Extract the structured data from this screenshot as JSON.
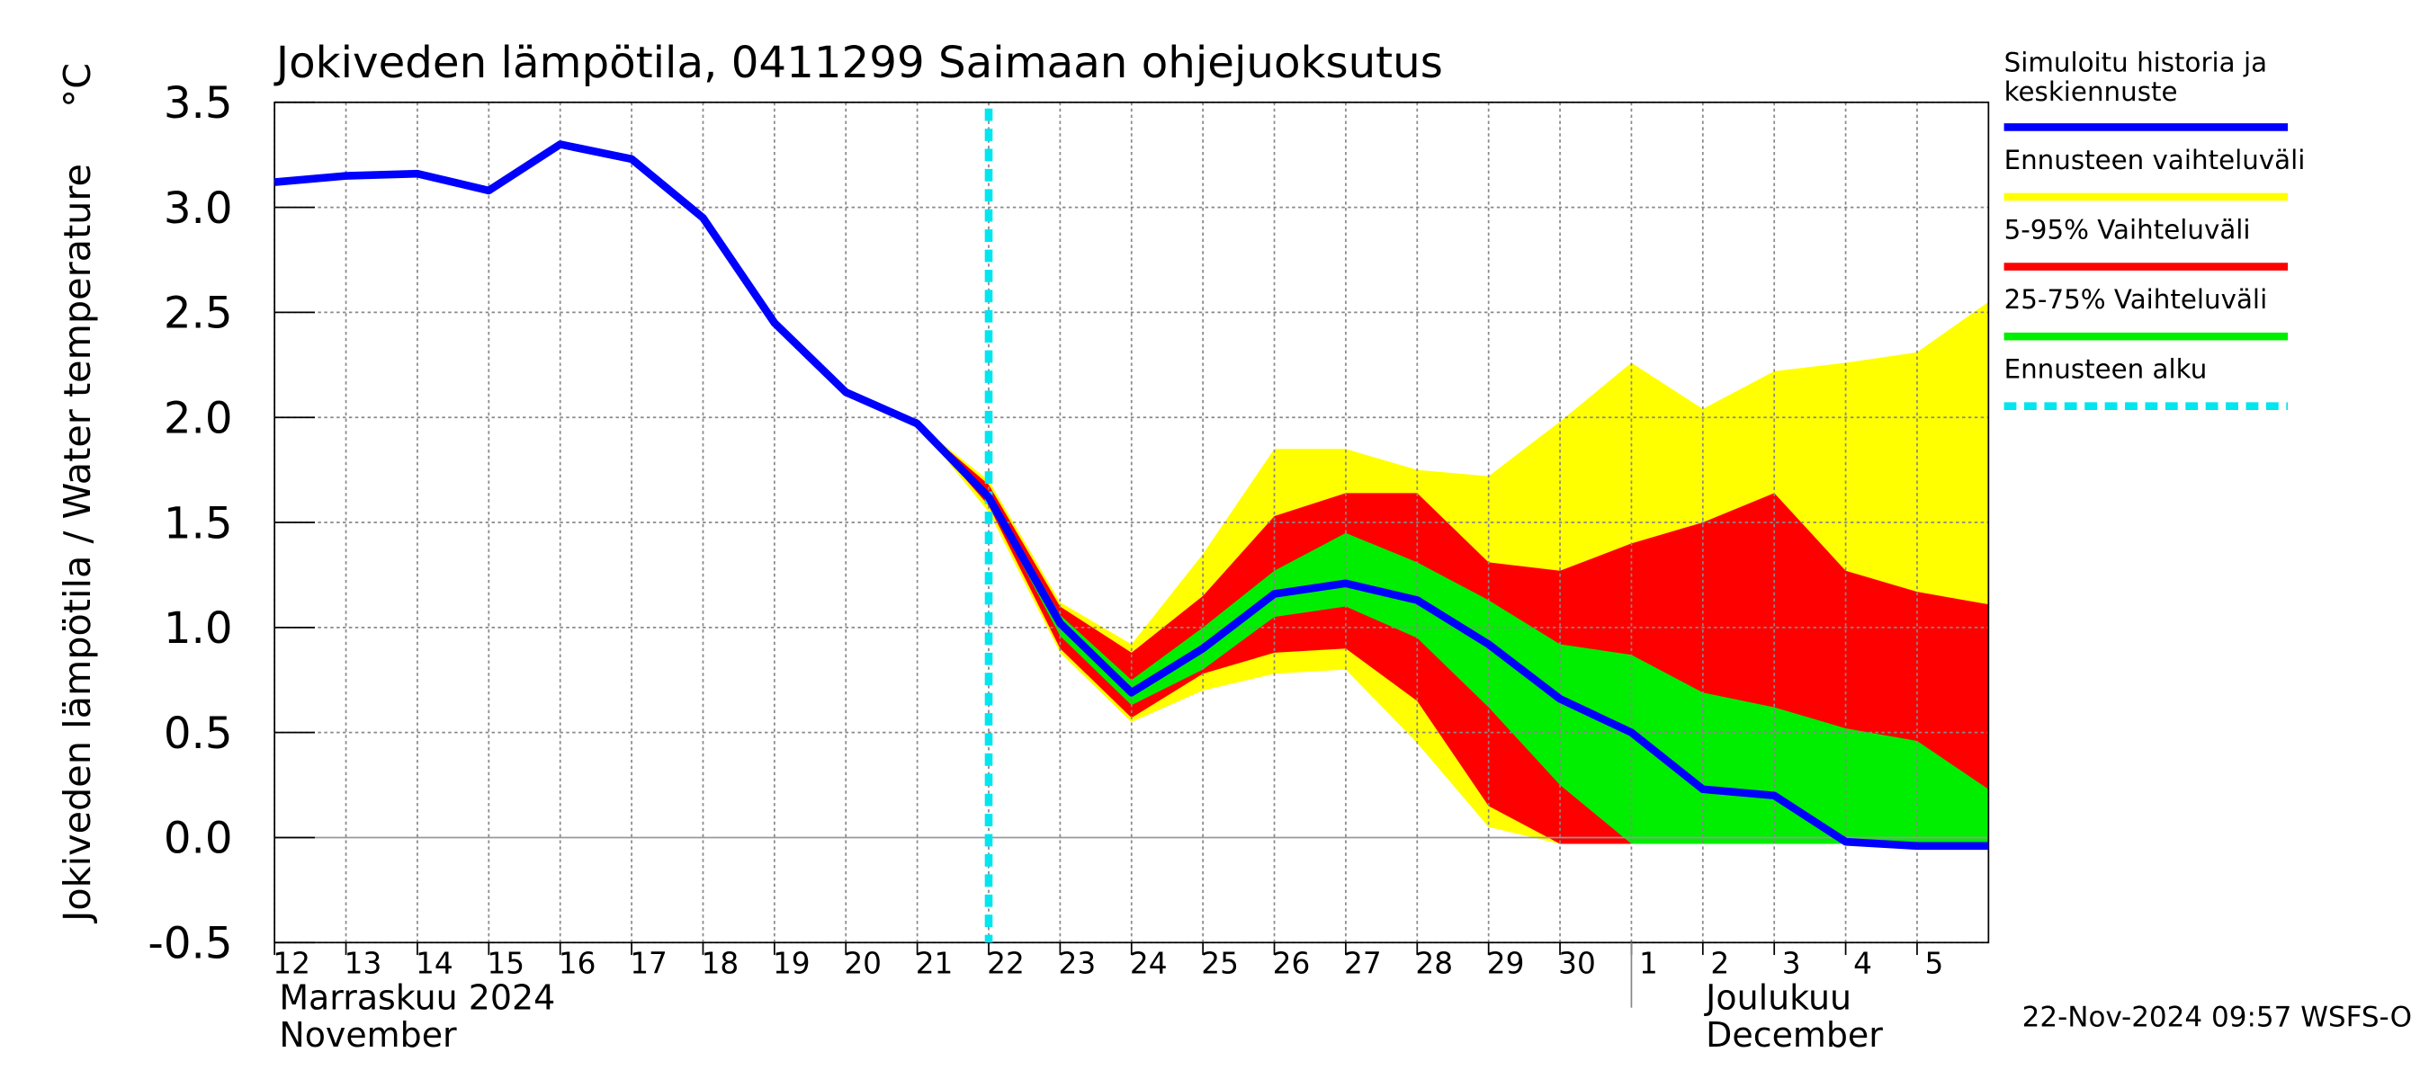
{
  "chart_data": {
    "type": "line",
    "title": "Jokiveden lämpötila, 0411299 Saimaan ohjejuoksutus",
    "y_label": "Jokiveden lämpötila / Water temperature",
    "y_unit": "°C",
    "timestamp": "22-Nov-2024 09:57 WSFS-O",
    "month_labels": [
      {
        "x": "2024-11-12",
        "lines": [
          "Marraskuu 2024",
          "November"
        ]
      },
      {
        "x": "2024-12-01",
        "lines": [
          "Joulukuu",
          "December"
        ]
      }
    ],
    "x": [
      "2024-11-12",
      "2024-11-13",
      "2024-11-14",
      "2024-11-15",
      "2024-11-16",
      "2024-11-17",
      "2024-11-18",
      "2024-11-19",
      "2024-11-20",
      "2024-11-21",
      "2024-11-22",
      "2024-11-23",
      "2024-11-24",
      "2024-11-25",
      "2024-11-26",
      "2024-11-27",
      "2024-11-28",
      "2024-11-29",
      "2024-11-30",
      "2024-12-01",
      "2024-12-02",
      "2024-12-03",
      "2024-12-04",
      "2024-12-05",
      "2024-12-06"
    ],
    "xlim": [
      "2024-11-12",
      "2024-12-06"
    ],
    "xticks": [
      {
        "value": "2024-11-12",
        "label": "12"
      },
      {
        "value": "2024-11-13",
        "label": "13"
      },
      {
        "value": "2024-11-14",
        "label": "14"
      },
      {
        "value": "2024-11-15",
        "label": "15"
      },
      {
        "value": "2024-11-16",
        "label": "16"
      },
      {
        "value": "2024-11-17",
        "label": "17"
      },
      {
        "value": "2024-11-18",
        "label": "18"
      },
      {
        "value": "2024-11-19",
        "label": "19"
      },
      {
        "value": "2024-11-20",
        "label": "20"
      },
      {
        "value": "2024-11-21",
        "label": "21"
      },
      {
        "value": "2024-11-22",
        "label": "22"
      },
      {
        "value": "2024-11-23",
        "label": "23"
      },
      {
        "value": "2024-11-24",
        "label": "24"
      },
      {
        "value": "2024-11-25",
        "label": "25"
      },
      {
        "value": "2024-11-26",
        "label": "26"
      },
      {
        "value": "2024-11-27",
        "label": "27"
      },
      {
        "value": "2024-11-28",
        "label": "28"
      },
      {
        "value": "2024-11-29",
        "label": "29"
      },
      {
        "value": "2024-11-30",
        "label": "30"
      },
      {
        "value": "2024-12-01",
        "label": "1"
      },
      {
        "value": "2024-12-02",
        "label": "2"
      },
      {
        "value": "2024-12-03",
        "label": "3"
      },
      {
        "value": "2024-12-04",
        "label": "4"
      },
      {
        "value": "2024-12-05",
        "label": "5"
      }
    ],
    "ylim": [
      -0.5,
      3.5
    ],
    "yticks": [
      -0.5,
      {
        "value": 0,
        "label": "0.0"
      },
      0.5,
      {
        "value": 1,
        "label": "1.0"
      },
      1.5,
      {
        "value": 2,
        "label": "2.0"
      },
      2.5,
      {
        "value": 3,
        "label": "3.0"
      },
      3.5
    ],
    "grid": true,
    "bands": [
      {
        "name": "Ennusteen vaihteluväli",
        "color": "#ffff00",
        "upper": [
          null,
          null,
          null,
          null,
          null,
          null,
          null,
          null,
          null,
          1.97,
          1.7,
          1.12,
          0.92,
          1.35,
          1.85,
          1.85,
          1.75,
          1.72,
          1.98,
          2.26,
          2.04,
          2.22,
          2.26,
          2.31,
          2.55
        ],
        "lower": [
          null,
          null,
          null,
          null,
          null,
          null,
          null,
          null,
          null,
          1.97,
          1.55,
          0.88,
          0.55,
          0.7,
          0.78,
          0.8,
          0.45,
          0.05,
          -0.03,
          -0.03,
          -0.03,
          -0.03,
          -0.03,
          -0.03,
          -0.03
        ]
      },
      {
        "name": "5-95% Vaihteluväli",
        "color": "#ff0000",
        "upper": [
          null,
          null,
          null,
          null,
          null,
          null,
          null,
          null,
          null,
          1.97,
          1.68,
          1.1,
          0.88,
          1.15,
          1.53,
          1.64,
          1.64,
          1.31,
          1.27,
          1.4,
          1.5,
          1.64,
          1.27,
          1.17,
          1.11
        ],
        "lower": [
          null,
          null,
          null,
          null,
          null,
          null,
          null,
          null,
          null,
          1.97,
          1.58,
          0.9,
          0.57,
          0.78,
          0.88,
          0.9,
          0.65,
          0.15,
          -0.03,
          -0.03,
          -0.03,
          -0.03,
          -0.03,
          -0.03,
          -0.03
        ]
      },
      {
        "name": "25-75% Vaihteluväli",
        "color": "#00ee00",
        "upper": [
          null,
          null,
          null,
          null,
          null,
          null,
          null,
          null,
          null,
          null,
          1.65,
          1.06,
          0.75,
          1.0,
          1.27,
          1.45,
          1.31,
          1.13,
          0.92,
          0.87,
          0.69,
          0.62,
          0.52,
          0.46,
          0.23
        ],
        "lower": [
          null,
          null,
          null,
          null,
          null,
          null,
          null,
          null,
          null,
          null,
          1.6,
          0.96,
          0.63,
          0.8,
          1.05,
          1.1,
          0.95,
          0.62,
          0.25,
          -0.03,
          -0.03,
          -0.03,
          -0.03,
          -0.03,
          -0.03
        ]
      }
    ],
    "series": [
      {
        "name": "Simuloitu historia ja keskiennuste",
        "color": "#0000ff",
        "values": [
          3.12,
          3.15,
          3.16,
          3.08,
          3.3,
          3.23,
          2.95,
          2.45,
          2.12,
          1.97,
          1.62,
          1.02,
          0.69,
          0.9,
          1.16,
          1.21,
          1.13,
          0.92,
          0.66,
          0.5,
          0.23,
          0.2,
          -0.02,
          -0.04,
          -0.04
        ]
      }
    ],
    "forecast_start": {
      "name": "Ennusteen alku",
      "color": "#00e5ee",
      "x": "2024-11-22"
    }
  }
}
